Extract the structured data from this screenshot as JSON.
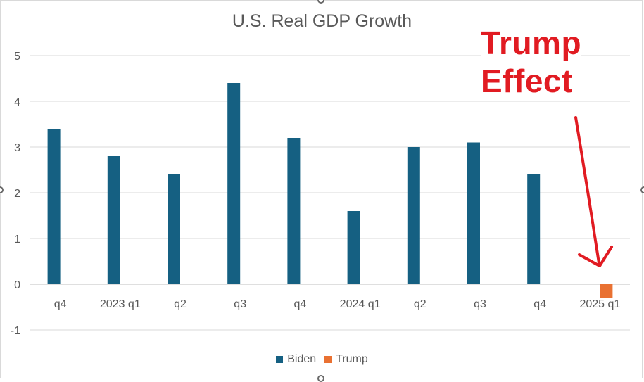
{
  "chart_data": {
    "type": "bar",
    "title": "U.S. Real GDP Growth",
    "xlabel": "",
    "ylabel": "",
    "categories": [
      "q4",
      "2023 q1",
      "q2",
      "q3",
      "q4",
      "2024 q1",
      "q2",
      "q3",
      "q4",
      "2025 q1"
    ],
    "series": [
      {
        "name": "Biden",
        "color": "#156082",
        "values": [
          3.4,
          2.8,
          2.4,
          4.4,
          3.2,
          1.6,
          3.0,
          3.1,
          2.4,
          null
        ]
      },
      {
        "name": "Trump",
        "color": "#e97132",
        "values": [
          null,
          null,
          null,
          null,
          null,
          null,
          null,
          null,
          null,
          -0.3
        ]
      }
    ],
    "ylim": [
      -1,
      5
    ],
    "yticks": [
      -1,
      0,
      1,
      2,
      3,
      4,
      5
    ],
    "grid": true,
    "legend": "bottom"
  },
  "annotation": {
    "line1": "Trump",
    "line2": "Effect",
    "color": "#e11b22"
  }
}
